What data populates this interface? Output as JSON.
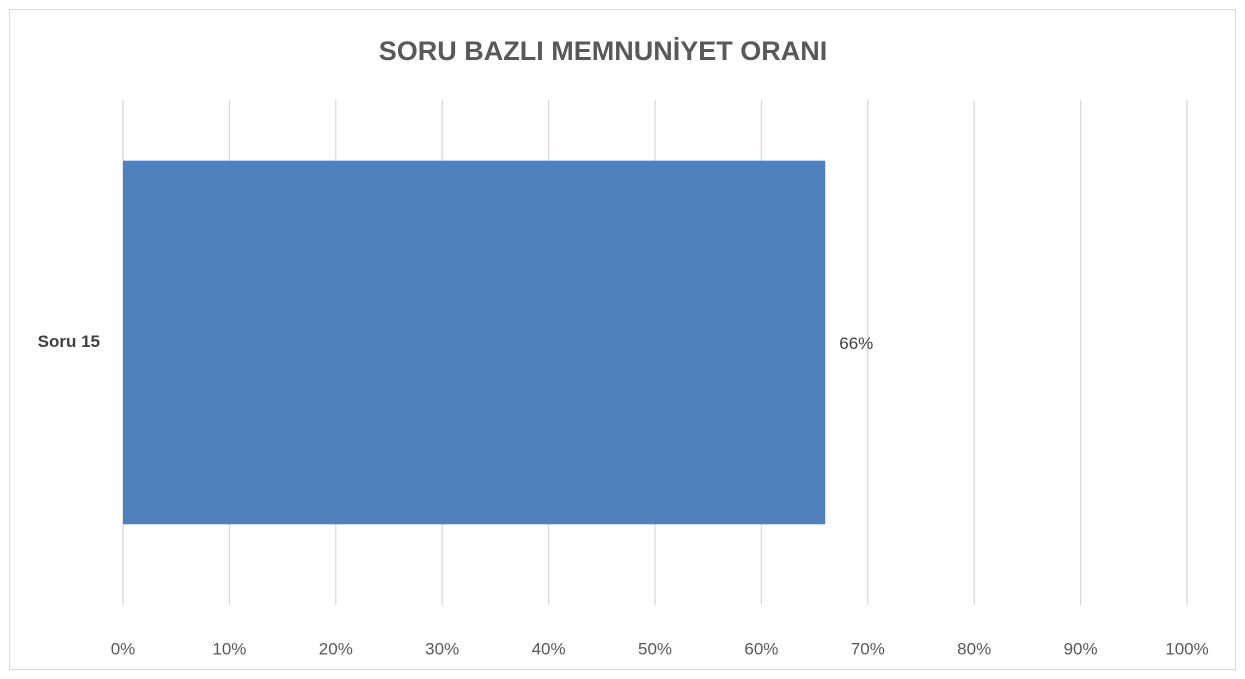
{
  "chart_data": {
    "type": "bar",
    "orientation": "horizontal",
    "title": "SORU BAZLI MEMNUNİYET ORANI",
    "categories": [
      "Soru 15"
    ],
    "values": [
      66
    ],
    "value_labels": [
      "66%"
    ],
    "color": "#4f81bd",
    "xlim": [
      0,
      100
    ],
    "xticks": [
      {
        "value": 0,
        "label": "0%"
      },
      {
        "value": 10,
        "label": "10%"
      },
      {
        "value": 20,
        "label": "20%"
      },
      {
        "value": 30,
        "label": "30%"
      },
      {
        "value": 40,
        "label": "40%"
      },
      {
        "value": 50,
        "label": "50%"
      },
      {
        "value": 60,
        "label": "60%"
      },
      {
        "value": 70,
        "label": "70%"
      },
      {
        "value": 80,
        "label": "80%"
      },
      {
        "value": 90,
        "label": "90%"
      },
      {
        "value": 100,
        "label": "100%"
      }
    ],
    "grid": true
  }
}
